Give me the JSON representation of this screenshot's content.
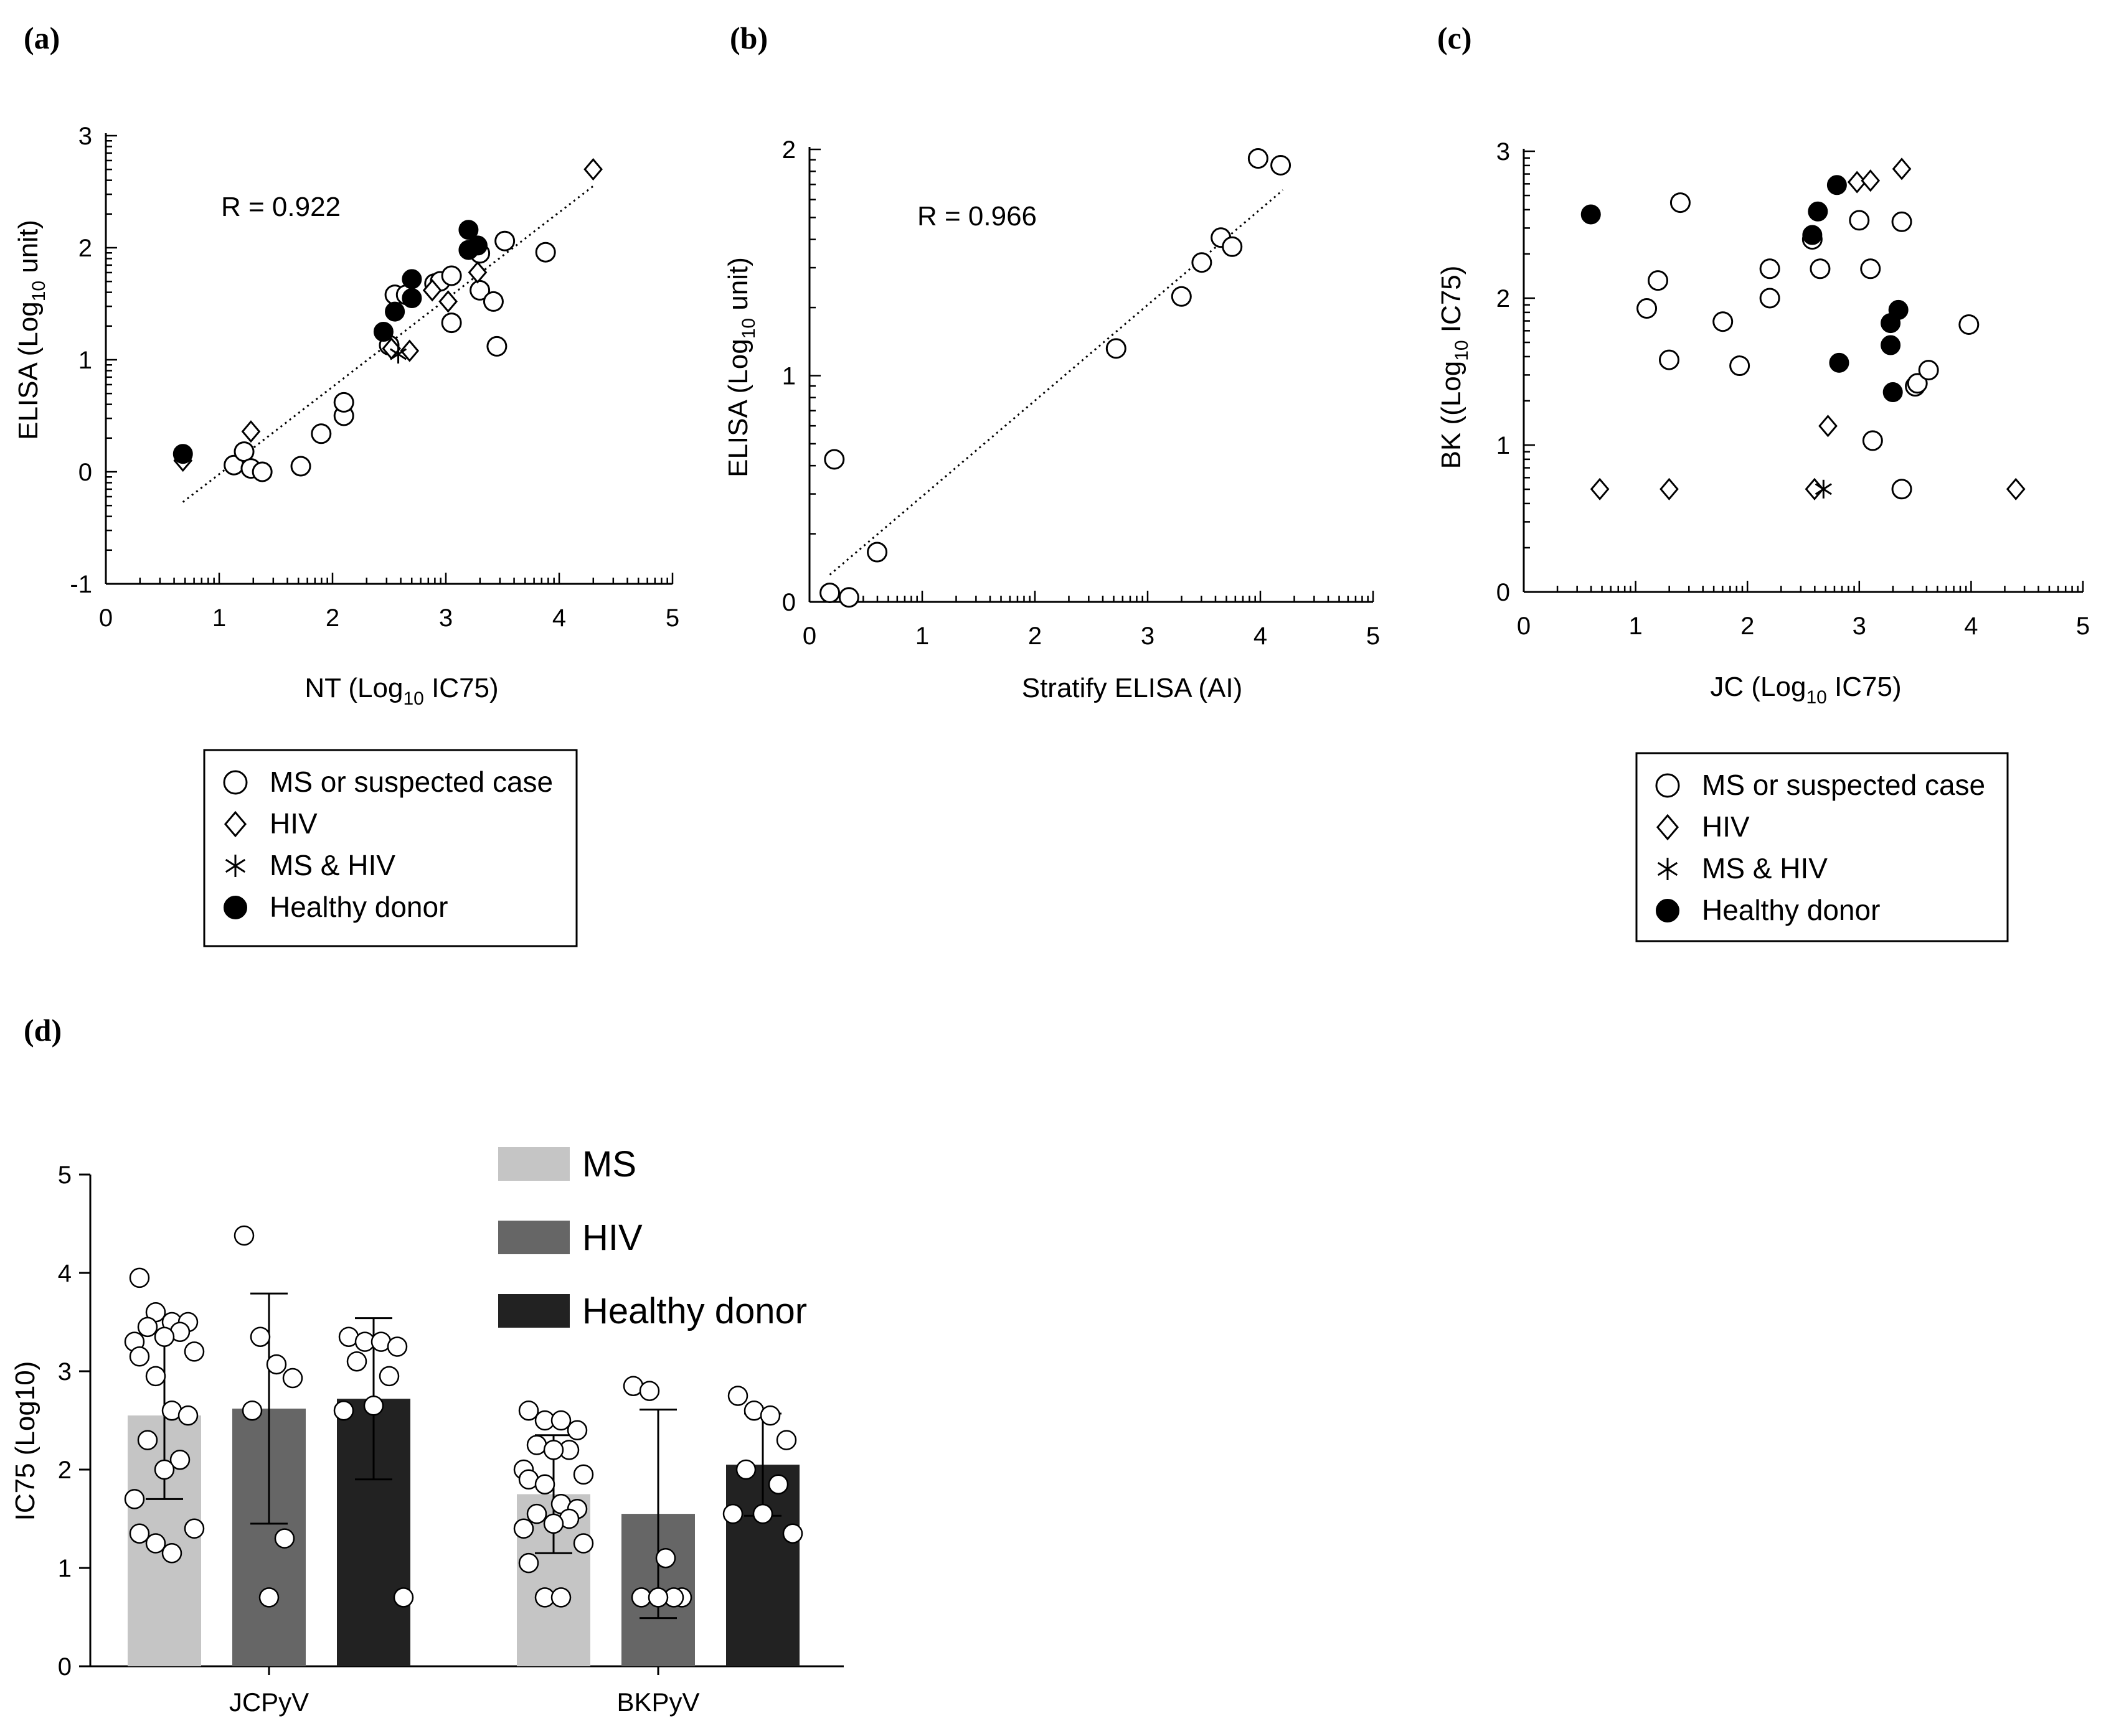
{
  "chart_data": [
    {
      "panel": "(a)",
      "type": "scatter",
      "xlabel": "NT (Log",
      "xlabel_sub": "10",
      "xlabel_tail": " IC75)",
      "ylabel": "ELISA (Log",
      "ylabel_sub": "10",
      "ylabel_tail": " unit)",
      "annotation": "R = 0.922",
      "xlim": [
        0,
        5
      ],
      "ylim": [
        -1,
        3
      ],
      "xticks": [
        0,
        1,
        2,
        3,
        4,
        5
      ],
      "yticks": [
        -1,
        0,
        1,
        2,
        3
      ],
      "legend": "below",
      "fit_line": [
        [
          0.68,
          -0.27
        ],
        [
          4.3,
          2.55
        ]
      ],
      "series": [
        {
          "name": "MS or suspected case",
          "marker": "circle",
          "points": [
            [
              1.13,
              0.06
            ],
            [
              1.22,
              0.18
            ],
            [
              1.28,
              0.03
            ],
            [
              1.38,
              0.0
            ],
            [
              1.72,
              0.05
            ],
            [
              1.9,
              0.34
            ],
            [
              2.1,
              0.5
            ],
            [
              2.1,
              0.62
            ],
            [
              2.5,
              1.13
            ],
            [
              2.55,
              1.58
            ],
            [
              2.65,
              1.58
            ],
            [
              2.9,
              1.68
            ],
            [
              2.95,
              1.7
            ],
            [
              3.05,
              1.75
            ],
            [
              3.05,
              1.33
            ],
            [
              3.3,
              1.95
            ],
            [
              3.3,
              1.62
            ],
            [
              3.42,
              1.52
            ],
            [
              3.45,
              1.12
            ],
            [
              3.52,
              2.06
            ],
            [
              3.88,
              1.96
            ]
          ]
        },
        {
          "name": "HIV",
          "marker": "diamond",
          "points": [
            [
              0.68,
              0.1
            ],
            [
              1.28,
              0.36
            ],
            [
              2.52,
              1.1
            ],
            [
              2.68,
              1.08
            ],
            [
              2.88,
              1.62
            ],
            [
              3.02,
              1.52
            ],
            [
              3.28,
              1.78
            ],
            [
              4.3,
              2.7
            ]
          ]
        },
        {
          "name": "MS & HIV",
          "marker": "asterisk",
          "points": [
            [
              2.58,
              1.05
            ]
          ]
        },
        {
          "name": "Healthy donor",
          "marker": "filled-circle",
          "points": [
            [
              0.68,
              0.16
            ],
            [
              2.45,
              1.25
            ],
            [
              2.55,
              1.43
            ],
            [
              2.7,
              1.55
            ],
            [
              2.7,
              1.72
            ],
            [
              3.2,
              2.16
            ],
            [
              3.2,
              1.98
            ],
            [
              3.28,
              2.02
            ]
          ]
        }
      ]
    },
    {
      "panel": "(b)",
      "type": "scatter",
      "xlabel": "Stratify  ELISA (AI)",
      "ylabel": "ELISA (Log",
      "ylabel_sub": "10",
      "ylabel_tail": " unit)",
      "annotation": "R = 0.966",
      "xlim": [
        0,
        5
      ],
      "ylim": [
        0,
        2
      ],
      "xticks": [
        0,
        1,
        2,
        3,
        4,
        5
      ],
      "yticks": [
        0,
        1,
        2
      ],
      "fit_line": [
        [
          0.18,
          0.12
        ],
        [
          4.2,
          1.82
        ]
      ],
      "series": [
        {
          "name": "MS or suspected case",
          "marker": "circle",
          "points": [
            [
              0.18,
              0.04
            ],
            [
              0.22,
              0.63
            ],
            [
              0.35,
              0.02
            ],
            [
              0.6,
              0.22
            ],
            [
              2.72,
              1.12
            ],
            [
              3.3,
              1.35
            ],
            [
              3.48,
              1.5
            ],
            [
              3.65,
              1.61
            ],
            [
              3.75,
              1.57
            ],
            [
              3.98,
              1.96
            ],
            [
              4.18,
              1.93
            ]
          ]
        }
      ]
    },
    {
      "panel": "(c)",
      "type": "scatter",
      "xlabel": "JC  (Log",
      "xlabel_sub": "10",
      "xlabel_tail": " IC75)",
      "ylabel": "BK ((Log",
      "ylabel_sub": "10",
      "ylabel_tail": " IC75)",
      "xlim": [
        0,
        5
      ],
      "ylim": [
        0,
        3
      ],
      "xticks": [
        0,
        1,
        2,
        3,
        4,
        5
      ],
      "yticks": [
        0,
        1,
        2,
        3
      ],
      "legend": "below",
      "series": [
        {
          "name": "MS or suspected case",
          "marker": "circle",
          "points": [
            [
              1.1,
              1.93
            ],
            [
              1.2,
              2.12
            ],
            [
              1.3,
              1.58
            ],
            [
              1.4,
              2.65
            ],
            [
              1.78,
              1.84
            ],
            [
              1.93,
              1.54
            ],
            [
              2.2,
              2.2
            ],
            [
              2.2,
              2.0
            ],
            [
              2.58,
              2.4
            ],
            [
              2.65,
              2.2
            ],
            [
              3.0,
              2.53
            ],
            [
              3.1,
              2.2
            ],
            [
              3.12,
              1.03
            ],
            [
              3.38,
              2.52
            ],
            [
              3.38,
              0.7
            ],
            [
              3.5,
              1.4
            ],
            [
              3.52,
              1.42
            ],
            [
              3.62,
              1.51
            ],
            [
              3.98,
              1.82
            ]
          ]
        },
        {
          "name": "HIV",
          "marker": "diamond",
          "points": [
            [
              0.68,
              0.7
            ],
            [
              1.3,
              0.7
            ],
            [
              2.6,
              0.7
            ],
            [
              2.72,
              1.13
            ],
            [
              2.98,
              2.79
            ],
            [
              3.1,
              2.8
            ],
            [
              3.38,
              2.88
            ],
            [
              4.4,
              0.7
            ]
          ]
        },
        {
          "name": "MS & HIV",
          "marker": "asterisk",
          "points": [
            [
              2.68,
              0.7
            ]
          ]
        },
        {
          "name": "Healthy donor",
          "marker": "filled-circle",
          "points": [
            [
              0.6,
              2.57
            ],
            [
              2.58,
              2.43
            ],
            [
              2.63,
              2.59
            ],
            [
              2.8,
              2.77
            ],
            [
              2.82,
              1.56
            ],
            [
              3.28,
              1.83
            ],
            [
              3.28,
              1.68
            ],
            [
              3.3,
              1.36
            ],
            [
              3.35,
              1.92
            ]
          ]
        }
      ]
    },
    {
      "panel": "(d)",
      "type": "bar",
      "ylabel": "IC75 (Log10)",
      "ylim": [
        0,
        5
      ],
      "yticks": [
        0,
        1,
        2,
        3,
        4,
        5
      ],
      "categories": [
        "JCPyV",
        "BKPyV"
      ],
      "legend": "top-right",
      "series": [
        {
          "name": "MS",
          "color": "#c5c5c5",
          "values": [
            2.55,
            1.75
          ],
          "sd": [
            0.85,
            0.6
          ]
        },
        {
          "name": "HIV",
          "color": "#666666",
          "values": [
            2.62,
            1.55
          ],
          "sd": [
            1.17,
            1.06
          ]
        },
        {
          "name": "Healthy donor",
          "color": "#222222",
          "values": [
            2.72,
            2.05
          ],
          "sd": [
            0.82,
            0.52
          ]
        }
      ],
      "points": {
        "JCPyV": {
          "MS": [
            3.95,
            3.6,
            3.5,
            3.5,
            3.45,
            3.4,
            3.35,
            3.3,
            3.2,
            3.15,
            2.95,
            2.6,
            2.55,
            2.3,
            2.1,
            2.0,
            1.7,
            1.4,
            1.35,
            1.25,
            1.15
          ],
          "HIV": [
            4.38,
            3.35,
            3.07,
            2.93,
            2.6,
            1.3,
            0.7
          ],
          "Healthy donor": [
            3.35,
            3.3,
            3.3,
            3.25,
            3.1,
            2.95,
            2.65,
            2.6,
            0.7
          ]
        },
        "BKPyV": {
          "MS": [
            2.6,
            2.5,
            2.5,
            2.4,
            2.25,
            2.2,
            2.2,
            2.0,
            1.95,
            1.9,
            1.85,
            1.65,
            1.6,
            1.55,
            1.5,
            1.45,
            1.4,
            1.25,
            1.05,
            0.7,
            0.7
          ],
          "HIV": [
            2.85,
            2.8,
            1.1,
            0.7,
            0.7,
            0.7,
            0.7
          ],
          "Healthy donor": [
            2.75,
            2.6,
            2.55,
            2.3,
            2.0,
            1.85,
            1.55,
            1.55,
            1.35
          ]
        }
      }
    }
  ],
  "legend_scatter": [
    {
      "marker": "circle",
      "label": "MS or suspected case"
    },
    {
      "marker": "diamond",
      "label": "HIV"
    },
    {
      "marker": "asterisk",
      "label": "MS & HIV"
    },
    {
      "marker": "filled-circle",
      "label": "Healthy donor"
    }
  ]
}
